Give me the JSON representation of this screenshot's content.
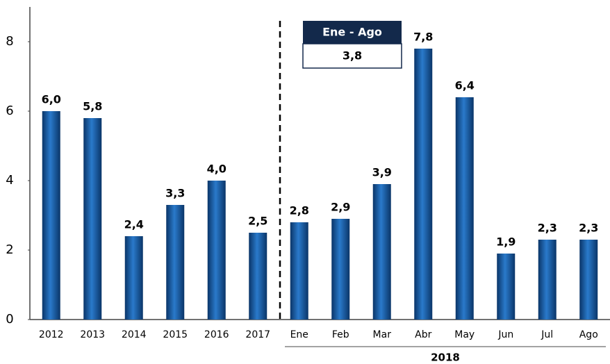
{
  "chart_data": {
    "type": "bar",
    "categories": [
      "2012",
      "2013",
      "2014",
      "2015",
      "2016",
      "2017",
      "Ene",
      "Feb",
      "Mar",
      "Abr",
      "May",
      "Jun",
      "Jul",
      "Ago"
    ],
    "values": [
      6.0,
      5.8,
      2.4,
      3.3,
      4.0,
      2.5,
      2.8,
      2.9,
      3.9,
      7.8,
      6.4,
      1.9,
      2.3,
      2.3
    ],
    "value_labels": [
      "6,0",
      "5,8",
      "2,4",
      "3,3",
      "4,0",
      "2,5",
      "2,8",
      "2,9",
      "3,9",
      "7,8",
      "6,4",
      "1,9",
      "2,3",
      "2,3"
    ],
    "color": "#2a7acb",
    "ylim": [
      0,
      9
    ],
    "yticks": [
      0,
      2,
      4,
      6,
      8
    ],
    "grid": false,
    "group_label": "2018",
    "annotation": {
      "title": "Ene - Ago",
      "value_label": "3,8"
    }
  }
}
